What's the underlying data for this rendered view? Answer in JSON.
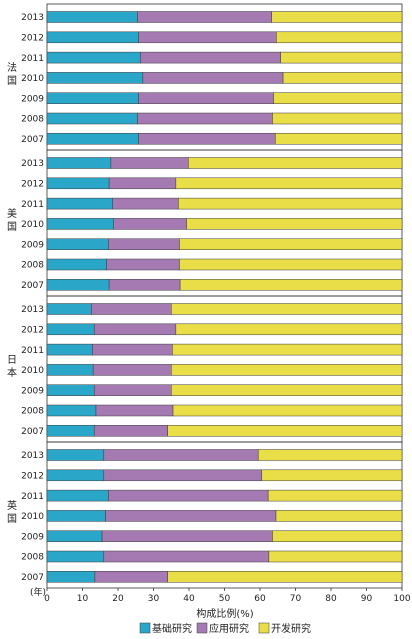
{
  "chart_data": {
    "type": "bar",
    "orientation": "horizontal",
    "stacked": true,
    "xlabel": "构成比例(%)",
    "year_axis_label": "(年)",
    "xlim": [
      0,
      100
    ],
    "xticks": [
      "0",
      "10",
      "20",
      "30",
      "40",
      "50",
      "60",
      "70",
      "80",
      "90",
      "100"
    ],
    "grid": false,
    "legend_position": "bottom",
    "colors": {
      "basic": "#2aa6c8",
      "applied": "#a57ab2",
      "development": "#e9de47",
      "edge": "#3a3a3a"
    },
    "series_names": [
      "基础研究",
      "应用研究",
      "开发研究"
    ],
    "panels": [
      {
        "country": "法国",
        "years": [
          "2013",
          "2012",
          "2011",
          "2010",
          "2009",
          "2008",
          "2007"
        ],
        "basic": [
          25.5,
          25.8,
          26.3,
          27.0,
          25.8,
          25.5,
          25.8
        ],
        "applied": [
          37.8,
          38.8,
          39.5,
          39.5,
          38.0,
          38.0,
          38.5
        ]
      },
      {
        "country": "美国",
        "years": [
          "2013",
          "2012",
          "2011",
          "2010",
          "2009",
          "2008",
          "2007"
        ],
        "basic": [
          18.0,
          17.5,
          18.5,
          18.8,
          17.3,
          16.8,
          17.5
        ],
        "applied": [
          21.8,
          18.8,
          18.5,
          20.5,
          20.0,
          20.5,
          20.0
        ]
      },
      {
        "country": "日本",
        "years": [
          "2013",
          "2012",
          "2011",
          "2010",
          "2009",
          "2008",
          "2007"
        ],
        "basic": [
          12.5,
          13.3,
          12.8,
          13.0,
          13.3,
          13.8,
          13.3
        ],
        "applied": [
          22.5,
          23.0,
          22.5,
          22.0,
          21.7,
          21.7,
          20.7
        ]
      },
      {
        "country": "英国",
        "years": [
          "2013",
          "2012",
          "2011",
          "2010",
          "2009",
          "2008",
          "2007"
        ],
        "basic": [
          16.0,
          16.0,
          17.3,
          16.5,
          15.5,
          16.0,
          13.5
        ],
        "applied": [
          43.5,
          44.5,
          45.0,
          48.0,
          48.0,
          46.5,
          20.5
        ]
      }
    ]
  }
}
